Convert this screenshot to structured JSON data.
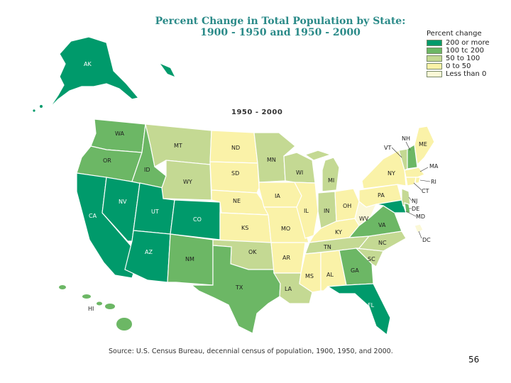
{
  "title": {
    "line1": "Percent Change in Total Population by State:",
    "line2": "1900 - 1950 and 1950 - 2000"
  },
  "subtitle": "1950 - 2000",
  "legend": {
    "title": "Percent change",
    "items": [
      {
        "label": "200 or more",
        "color": "#009a6b"
      },
      {
        "label": "100 tc 200",
        "color": "#6cb765"
      },
      {
        "label": "50 to 100",
        "color": "#c4d993"
      },
      {
        "label": "0 to 50",
        "color": "#faf2a8"
      },
      {
        "label": "Less than 0",
        "color": "#fbf8d6"
      }
    ]
  },
  "states": {
    "AK": "AK",
    "HI": "HI",
    "WA": "WA",
    "OR": "OR",
    "CA": "CA",
    "ID": "ID",
    "NV": "NV",
    "UT": "UT",
    "AZ": "AZ",
    "MT": "MT",
    "WY": "WY",
    "CO": "CO",
    "NM": "NM",
    "ND": "ND",
    "SD": "SD",
    "NE": "NE",
    "KS": "KS",
    "OK": "OK",
    "TX": "TX",
    "MN": "MN",
    "IA": "IA",
    "MO": "MO",
    "AR": "AR",
    "LA": "LA",
    "WI": "WI",
    "IL": "IL",
    "MI": "MI",
    "IN": "IN",
    "OH": "OH",
    "KY": "KY",
    "TN": "TN",
    "MS": "MS",
    "AL": "AL",
    "GA": "GA",
    "FL": "FL",
    "SC": "SC",
    "NC": "NC",
    "VA": "VA",
    "WV": "WV",
    "PA": "PA",
    "NY": "NY",
    "VT": "VT",
    "NH": "NH",
    "ME": "ME",
    "MA": "MA",
    "CT": "CT",
    "RI": "RI",
    "NJ": "NJ",
    "DE": "DE",
    "MD": "MD",
    "DC": "DC"
  },
  "source": "Source:  U.S. Census Bureau, decennial census of population, 1900, 1950, and 2000.",
  "page_number": "56"
}
